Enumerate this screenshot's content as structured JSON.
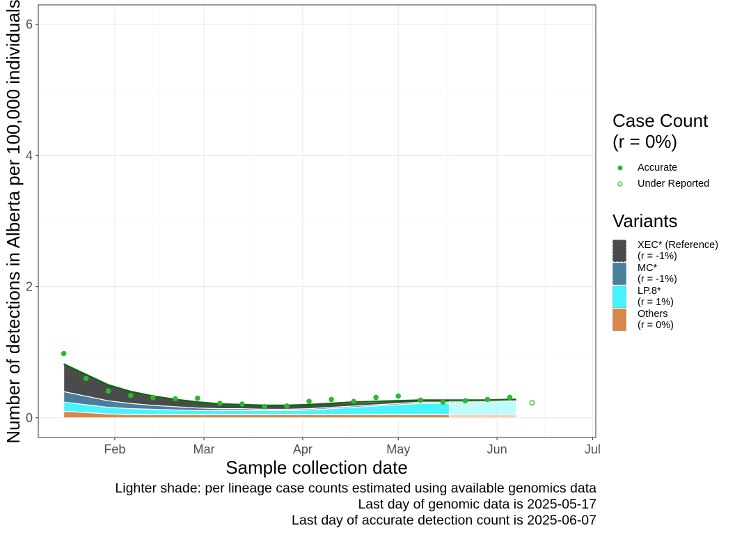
{
  "chart_data": {
    "type": "area",
    "xlabel": "Sample collection date",
    "ylabel": "Number of detections in Alberta per 100,000 individuals",
    "xlim": [
      "2025-01-08",
      "2025-07-02"
    ],
    "ylim": [
      -0.3,
      6.3
    ],
    "x_ticks": [
      {
        "date": "2025-02-01",
        "label": "Feb"
      },
      {
        "date": "2025-03-01",
        "label": "Mar"
      },
      {
        "date": "2025-04-01",
        "label": "Apr"
      },
      {
        "date": "2025-05-01",
        "label": "May"
      },
      {
        "date": "2025-06-01",
        "label": "Jun"
      },
      {
        "date": "2025-07-01",
        "label": "Jul"
      }
    ],
    "y_ticks": [
      0,
      2,
      4,
      6
    ],
    "grid": true,
    "genomic_cutoff": "2025-05-17",
    "dates": [
      "2025-01-16",
      "2025-01-23",
      "2025-01-30",
      "2025-02-06",
      "2025-02-13",
      "2025-02-20",
      "2025-02-27",
      "2025-03-06",
      "2025-03-13",
      "2025-03-20",
      "2025-03-27",
      "2025-04-03",
      "2025-04-10",
      "2025-04-17",
      "2025-04-24",
      "2025-05-01",
      "2025-05-08",
      "2025-05-15",
      "2025-05-17",
      "2025-05-22",
      "2025-05-29",
      "2025-06-05",
      "2025-06-07"
    ],
    "series": [
      {
        "name": "Others",
        "color": "#d8864a",
        "values": [
          0.1,
          0.08,
          0.06,
          0.05,
          0.05,
          0.05,
          0.05,
          0.05,
          0.05,
          0.05,
          0.05,
          0.05,
          0.05,
          0.05,
          0.05,
          0.05,
          0.05,
          0.05,
          0.05,
          0.05,
          0.05,
          0.05,
          0.05
        ]
      },
      {
        "name": "LP.8*",
        "color": "#45f4ff",
        "values": [
          0.14,
          0.12,
          0.1,
          0.09,
          0.08,
          0.07,
          0.06,
          0.06,
          0.06,
          0.06,
          0.06,
          0.07,
          0.09,
          0.11,
          0.13,
          0.15,
          0.17,
          0.17,
          0.17,
          0.18,
          0.19,
          0.2,
          0.2
        ]
      },
      {
        "name": "MC*",
        "color": "#4a7f9c",
        "values": [
          0.16,
          0.13,
          0.1,
          0.08,
          0.06,
          0.05,
          0.04,
          0.03,
          0.03,
          0.02,
          0.02,
          0.02,
          0.02,
          0.02,
          0.02,
          0.02,
          0.02,
          0.02,
          0.02,
          0.01,
          0.01,
          0.01,
          0.01
        ]
      },
      {
        "name": "XEC* (Reference)",
        "color": "#4b4b4b",
        "values": [
          0.42,
          0.33,
          0.24,
          0.18,
          0.14,
          0.11,
          0.09,
          0.07,
          0.06,
          0.06,
          0.06,
          0.06,
          0.06,
          0.05,
          0.04,
          0.04,
          0.03,
          0.03,
          0.03,
          0.03,
          0.02,
          0.02,
          0.02
        ]
      }
    ],
    "total_line": {
      "color": "#0b6b0b",
      "values": [
        0.82,
        0.66,
        0.5,
        0.4,
        0.33,
        0.28,
        0.24,
        0.21,
        0.2,
        0.19,
        0.19,
        0.2,
        0.22,
        0.24,
        0.25,
        0.26,
        0.27,
        0.27,
        0.27,
        0.27,
        0.27,
        0.28,
        0.28
      ]
    },
    "points_accurate": [
      {
        "x": "2025-01-16",
        "y": 0.98
      },
      {
        "x": "2025-01-23",
        "y": 0.6
      },
      {
        "x": "2025-01-30",
        "y": 0.41
      },
      {
        "x": "2025-02-06",
        "y": 0.34
      },
      {
        "x": "2025-02-13",
        "y": 0.31
      },
      {
        "x": "2025-02-20",
        "y": 0.29
      },
      {
        "x": "2025-02-27",
        "y": 0.3
      },
      {
        "x": "2025-03-06",
        "y": 0.22
      },
      {
        "x": "2025-03-13",
        "y": 0.21
      },
      {
        "x": "2025-03-20",
        "y": 0.17
      },
      {
        "x": "2025-03-27",
        "y": 0.18
      },
      {
        "x": "2025-04-03",
        "y": 0.25
      },
      {
        "x": "2025-04-10",
        "y": 0.28
      },
      {
        "x": "2025-04-17",
        "y": 0.25
      },
      {
        "x": "2025-04-24",
        "y": 0.31
      },
      {
        "x": "2025-05-01",
        "y": 0.33
      },
      {
        "x": "2025-05-08",
        "y": 0.27
      },
      {
        "x": "2025-05-15",
        "y": 0.24
      },
      {
        "x": "2025-05-22",
        "y": 0.26
      },
      {
        "x": "2025-05-29",
        "y": 0.28
      },
      {
        "x": "2025-06-05",
        "y": 0.31
      }
    ],
    "points_under_reported": [
      {
        "x": "2025-06-12",
        "y": 0.23
      }
    ],
    "point_color": "#2db82d",
    "legend": {
      "case_title": "Case Count\n(r = 0%)",
      "case_items": [
        "Accurate",
        "Under Reported"
      ],
      "variants_title": "Variants",
      "variant_items": [
        {
          "label": "XEC* (Reference)\n(r = -1%)",
          "color": "#4b4b4b"
        },
        {
          "label": "MC*\n(r = -1%)",
          "color": "#4a7f9c"
        },
        {
          "label": "LP.8*\n(r = 1%)",
          "color": "#45f4ff"
        },
        {
          "label": "Others\n(r = 0%)",
          "color": "#d8864a"
        }
      ]
    }
  },
  "caption": {
    "line1": "Lighter shade: per lineage case counts estimated using available genomics data",
    "line2": "Last day of genomic data is 2025-05-17",
    "line3": "Last day of accurate detection count is 2025-06-07"
  }
}
